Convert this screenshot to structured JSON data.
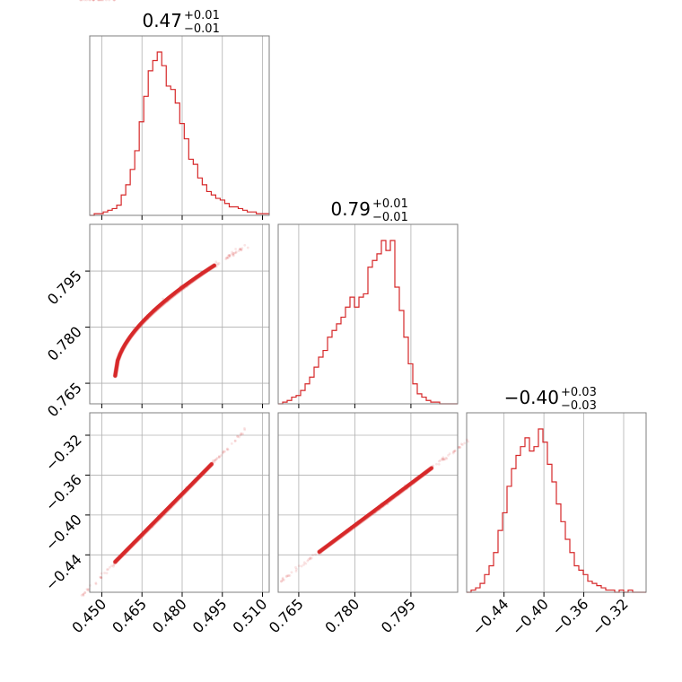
{
  "chart_data": {
    "type": "corner",
    "color": "#d62728",
    "grid": true,
    "parameters": [
      {
        "median": "0.47",
        "plus": "+0.01",
        "minus": "−0.01",
        "range": [
          0.4455,
          0.5125
        ],
        "ticks": [
          0.45,
          0.465,
          0.48,
          0.495,
          0.51
        ],
        "tick_labels": [
          "0.450",
          "0.465",
          "0.480",
          "0.495",
          "0.510"
        ]
      },
      {
        "median": "0.79",
        "plus": "+0.01",
        "minus": "−0.01",
        "range": [
          0.7595,
          0.8075
        ],
        "ticks": [
          0.765,
          0.78,
          0.795
        ],
        "tick_labels": [
          "0.765",
          "0.780",
          "0.795"
        ]
      },
      {
        "median": "−0.40",
        "plus": "+0.03",
        "minus": "−0.03",
        "range": [
          -0.4775,
          -0.2975
        ],
        "ticks": [
          -0.44,
          -0.4,
          -0.36,
          -0.32
        ],
        "tick_labels": [
          "−0.44",
          "−0.40",
          "−0.36",
          "−0.32"
        ]
      }
    ],
    "histograms": [
      {
        "bin_start": 0.4455,
        "bin_width": 0.00168,
        "counts": [
          0,
          1,
          1,
          2,
          3,
          4,
          6,
          12,
          18,
          27,
          38,
          55,
          70,
          85,
          91,
          96,
          88,
          76,
          74,
          66,
          54,
          45,
          33,
          30,
          22,
          18,
          14,
          12,
          10,
          9,
          7,
          5,
          5,
          4,
          3,
          2,
          2,
          1,
          1,
          1
        ]
      },
      {
        "bin_start": 0.7595,
        "bin_width": 0.0012,
        "counts": [
          0,
          1,
          2,
          4,
          5,
          8,
          12,
          16,
          22,
          28,
          32,
          40,
          44,
          48,
          52,
          58,
          64,
          58,
          64,
          66,
          82,
          86,
          90,
          98,
          92,
          98,
          70,
          56,
          40,
          24,
          12,
          6,
          4,
          2,
          1,
          1,
          0,
          0,
          0,
          0
        ]
      },
      {
        "bin_start": -0.4775,
        "bin_width": 0.0045,
        "counts": [
          0,
          1,
          2,
          4,
          8,
          12,
          18,
          28,
          36,
          48,
          56,
          62,
          66,
          70,
          64,
          66,
          74,
          68,
          58,
          50,
          40,
          32,
          24,
          18,
          12,
          10,
          8,
          5,
          4,
          3,
          2,
          1,
          1,
          0,
          1,
          0,
          1,
          0,
          0,
          0
        ]
      }
    ],
    "pairs": [
      {
        "x_param": 0,
        "y_param": 1,
        "relation": "curved",
        "x_core": [
          0.455,
          0.492
        ],
        "y_core": [
          0.767,
          0.7965
        ]
      },
      {
        "x_param": 0,
        "y_param": 2,
        "relation": "linear",
        "x_core": [
          0.455,
          0.491
        ],
        "y_core": [
          -0.447,
          -0.349
        ]
      },
      {
        "x_param": 1,
        "y_param": 2,
        "relation": "linear",
        "x_core": [
          0.7705,
          0.8005
        ],
        "y_core": [
          -0.437,
          -0.353
        ]
      }
    ]
  }
}
